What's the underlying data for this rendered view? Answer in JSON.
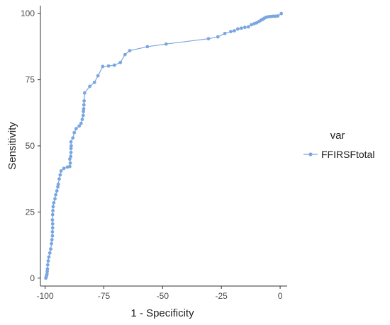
{
  "chart_data": {
    "type": "line",
    "title": "",
    "xlabel": "1 - Specificity",
    "ylabel": "Sensitivity",
    "xlim": [
      -102,
      3
    ],
    "ylim": [
      -3,
      103
    ],
    "x_ticks": [
      -100,
      -75,
      -50,
      -25,
      0
    ],
    "y_ticks": [
      0,
      25,
      50,
      75,
      100
    ],
    "x_tick_labels": [
      "-100",
      "-75",
      "-50",
      "-25",
      "0"
    ],
    "y_tick_labels": [
      "0",
      "25",
      "50",
      "75",
      "100"
    ],
    "grid": false,
    "legend_position": "right",
    "legend_title": "var",
    "series": [
      {
        "name": "FFIRSFtotal",
        "color": "#7aa6e0",
        "points": [
          [
            -99.7,
            0
          ],
          [
            -99.5,
            0.5
          ],
          [
            -99.4,
            1
          ],
          [
            -99.2,
            1.5
          ],
          [
            -99.1,
            2.5
          ],
          [
            -99.0,
            3.5
          ],
          [
            -98.9,
            5
          ],
          [
            -98.7,
            6.5
          ],
          [
            -98.4,
            8
          ],
          [
            -98.0,
            9.5
          ],
          [
            -97.6,
            11
          ],
          [
            -97.3,
            13
          ],
          [
            -97.1,
            14.5
          ],
          [
            -96.9,
            16
          ],
          [
            -96.9,
            17.5
          ],
          [
            -96.8,
            19
          ],
          [
            -96.8,
            20.5
          ],
          [
            -96.9,
            22
          ],
          [
            -96.8,
            24
          ],
          [
            -96.7,
            25.5
          ],
          [
            -96.6,
            27
          ],
          [
            -96.3,
            28.5
          ],
          [
            -95.8,
            30
          ],
          [
            -95.5,
            31.5
          ],
          [
            -95.0,
            33
          ],
          [
            -94.6,
            34.5
          ],
          [
            -94.4,
            35.5
          ],
          [
            -94.0,
            37.5
          ],
          [
            -93.6,
            39
          ],
          [
            -93.2,
            40.5
          ],
          [
            -92.0,
            41.5
          ],
          [
            -90.5,
            42
          ],
          [
            -89.5,
            42.2
          ],
          [
            -89.3,
            43.5
          ],
          [
            -89.5,
            45
          ],
          [
            -89.1,
            46
          ],
          [
            -89.0,
            47.5
          ],
          [
            -89.0,
            49
          ],
          [
            -88.9,
            50
          ],
          [
            -89.0,
            51.5
          ],
          [
            -88.2,
            53
          ],
          [
            -87.6,
            55
          ],
          [
            -86.8,
            56.5
          ],
          [
            -85.5,
            57.5
          ],
          [
            -84.7,
            58.5
          ],
          [
            -84.2,
            60
          ],
          [
            -83.8,
            61.5
          ],
          [
            -83.7,
            63
          ],
          [
            -83.6,
            64
          ],
          [
            -83.5,
            65.5
          ],
          [
            -83.4,
            67
          ],
          [
            -83.2,
            70
          ],
          [
            -81.0,
            72.5
          ],
          [
            -79.0,
            74
          ],
          [
            -77.5,
            76.5
          ],
          [
            -75.5,
            80
          ],
          [
            -73.0,
            80.2
          ],
          [
            -70.5,
            80.5
          ],
          [
            -68.0,
            81.5
          ],
          [
            -66.0,
            84.5
          ],
          [
            -64.0,
            86
          ],
          [
            -56.5,
            87.5
          ],
          [
            -48.5,
            88.5
          ],
          [
            -30.5,
            90.5
          ],
          [
            -26.5,
            91.2
          ],
          [
            -23.5,
            92.5
          ],
          [
            -21.0,
            93.2
          ],
          [
            -19.5,
            93.5
          ],
          [
            -18.0,
            94.2
          ],
          [
            -16.5,
            94.5
          ],
          [
            -15.0,
            94.8
          ],
          [
            -13.5,
            95.0
          ],
          [
            -12.2,
            95.8
          ],
          [
            -11.0,
            96.2
          ],
          [
            -10.0,
            96.5
          ],
          [
            -9.0,
            97.0
          ],
          [
            -8.2,
            97.5
          ],
          [
            -7.5,
            97.8
          ],
          [
            -6.8,
            98.2
          ],
          [
            -6.0,
            98.6
          ],
          [
            -5.0,
            98.8
          ],
          [
            -4.0,
            98.9
          ],
          [
            -3.0,
            99.0
          ],
          [
            -2.0,
            99.0
          ],
          [
            -1.0,
            99.1
          ],
          [
            0.5,
            100
          ]
        ]
      }
    ]
  }
}
